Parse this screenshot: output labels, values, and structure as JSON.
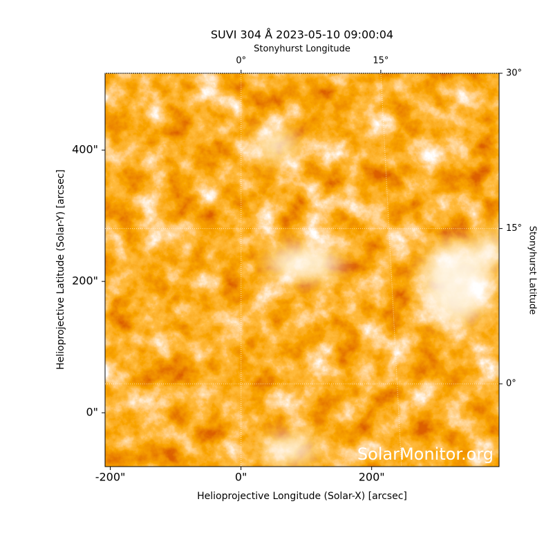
{
  "chart_data": {
    "type": "image",
    "title": "SUVI 304 Å 2023-05-10 09:00:04",
    "xlabel": "Helioprojective Longitude (Solar-X) [arcsec]",
    "ylabel": "Helioprojective Latitude (Solar-Y) [arcsec]",
    "x2label": "Stonyhurst Longitude",
    "y2label": "Stonyhurst Latitude",
    "watermark": "SolarMonitor.org",
    "xlim": [
      -208,
      395
    ],
    "ylim": [
      -82,
      517
    ],
    "xticks": [
      {
        "value": -200,
        "label": "-200\""
      },
      {
        "value": 0,
        "label": "0\""
      },
      {
        "value": 200,
        "label": "200\""
      }
    ],
    "yticks": [
      {
        "value": 0,
        "label": "0\""
      },
      {
        "value": 200,
        "label": "200\""
      },
      {
        "value": 400,
        "label": "400\""
      }
    ],
    "x2lim": [
      -14.6,
      27.7
    ],
    "x2ticks": [
      {
        "value": 0,
        "label": "0°"
      },
      {
        "value": 15,
        "label": "15°"
      }
    ],
    "y2lim": [
      -8,
      30
    ],
    "y2ticks": [
      {
        "value": 0,
        "label": "0°"
      },
      {
        "value": 15,
        "label": "15°"
      },
      {
        "value": 30,
        "label": "30°"
      }
    ],
    "grid": true
  }
}
